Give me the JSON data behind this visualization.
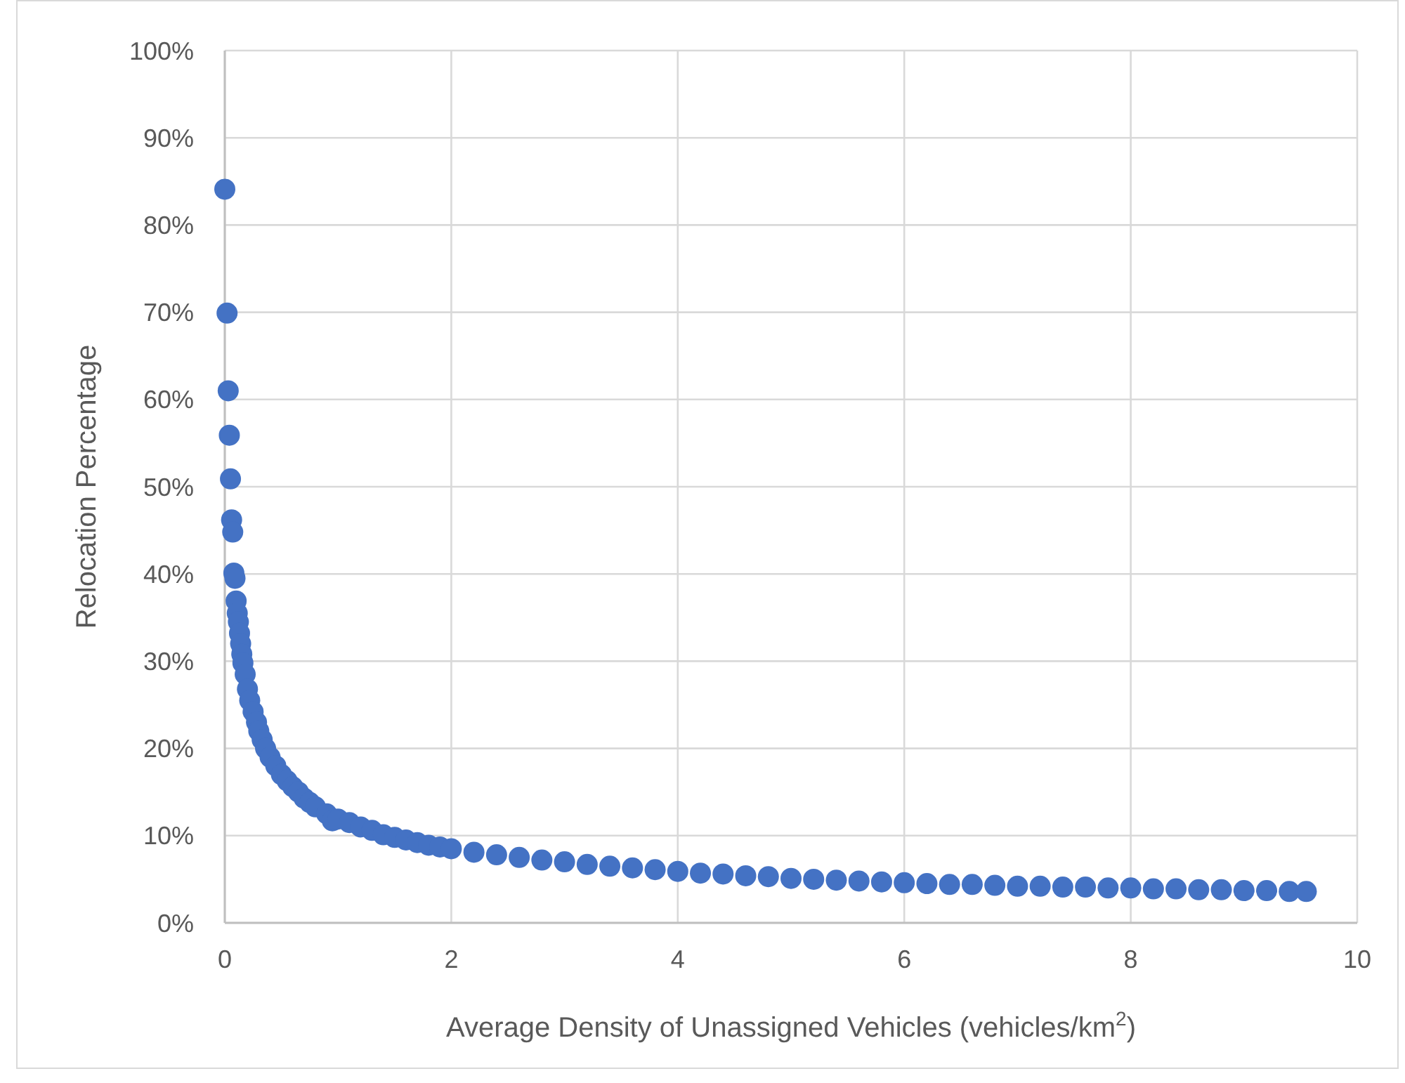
{
  "chart_data": {
    "type": "scatter",
    "xlabel": "Average Density of Unassigned Vehicles (vehicles/km$^{2}$)",
    "ylabel": "Relocation Percentage",
    "xlim": [
      0,
      10
    ],
    "xticks": [
      0,
      2,
      4,
      6,
      8,
      10
    ],
    "ylim": [
      0,
      100
    ],
    "yticks": [
      {
        "value": 0,
        "label": "0%"
      },
      {
        "value": 10,
        "label": "10%"
      },
      {
        "value": 20,
        "label": "20%"
      },
      {
        "value": 30,
        "label": "30%"
      },
      {
        "value": 40,
        "label": "40%"
      },
      {
        "value": 50,
        "label": "50%"
      },
      {
        "value": 60,
        "label": "60%"
      },
      {
        "value": 70,
        "label": "70%"
      },
      {
        "value": 80,
        "label": "80%"
      },
      {
        "value": 90,
        "label": "90%"
      },
      {
        "value": 100,
        "label": "100%"
      }
    ],
    "grid": true,
    "marker": "circle",
    "series": [
      {
        "color": "#4472c4",
        "x": [
          0.0,
          0.02,
          0.03,
          0.04,
          0.05,
          0.06,
          0.07,
          0.08,
          0.09,
          0.1,
          0.11,
          0.12,
          0.13,
          0.14,
          0.15,
          0.16,
          0.18,
          0.2,
          0.22,
          0.25,
          0.28,
          0.3,
          0.33,
          0.36,
          0.4,
          0.45,
          0.5,
          0.55,
          0.6,
          0.65,
          0.7,
          0.75,
          0.8,
          0.9,
          0.95,
          1.0,
          1.1,
          1.2,
          1.3,
          1.4,
          1.5,
          1.6,
          1.7,
          1.8,
          1.9,
          2.0,
          2.2,
          2.4,
          2.6,
          2.8,
          3.0,
          3.2,
          3.4,
          3.6,
          3.8,
          4.0,
          4.2,
          4.4,
          4.6,
          4.8,
          5.0,
          5.2,
          5.4,
          5.6,
          5.8,
          6.0,
          6.2,
          6.4,
          6.6,
          6.8,
          7.0,
          7.2,
          7.4,
          7.6,
          7.8,
          8.0,
          8.2,
          8.4,
          8.6,
          8.8,
          9.0,
          9.2,
          9.4,
          9.55
        ],
        "values": [
          84.1,
          69.9,
          61.0,
          55.9,
          50.9,
          46.2,
          44.8,
          40.1,
          39.5,
          36.9,
          35.5,
          34.5,
          33.2,
          32.0,
          30.8,
          29.8,
          28.5,
          26.8,
          25.5,
          24.2,
          23.0,
          22.0,
          21.0,
          20.0,
          19.0,
          18.0,
          17.0,
          16.3,
          15.6,
          15.0,
          14.3,
          13.8,
          13.3,
          12.5,
          11.7,
          11.9,
          11.5,
          11.0,
          10.6,
          10.1,
          9.8,
          9.5,
          9.2,
          8.9,
          8.7,
          8.5,
          8.1,
          7.8,
          7.5,
          7.2,
          7.0,
          6.7,
          6.5,
          6.3,
          6.1,
          5.9,
          5.7,
          5.6,
          5.4,
          5.3,
          5.1,
          5.0,
          4.9,
          4.8,
          4.7,
          4.6,
          4.5,
          4.4,
          4.4,
          4.3,
          4.2,
          4.2,
          4.1,
          4.1,
          4.0,
          4.0,
          3.9,
          3.9,
          3.8,
          3.8,
          3.7,
          3.7,
          3.6,
          3.6
        ]
      }
    ]
  }
}
